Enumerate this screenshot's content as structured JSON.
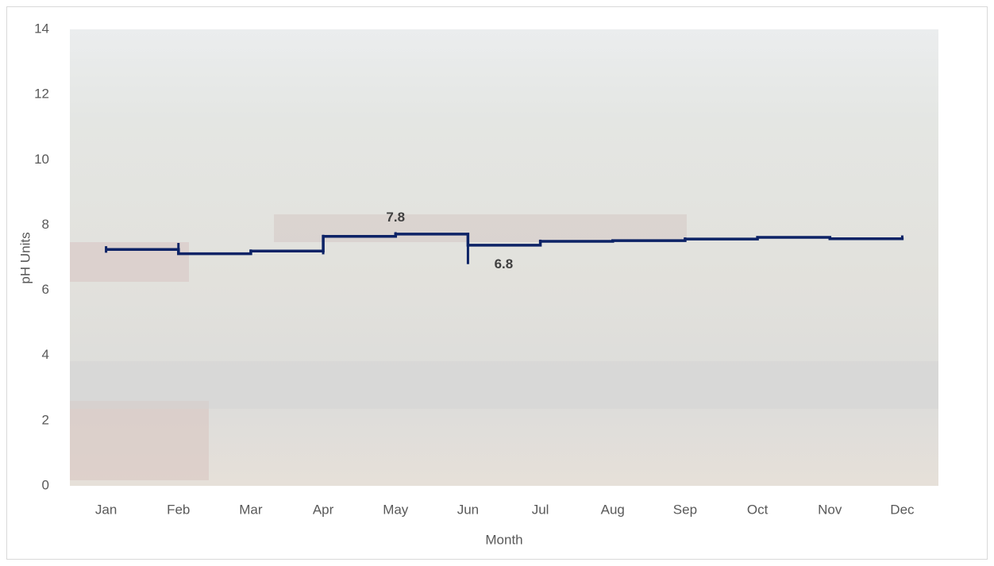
{
  "chart_data": {
    "type": "step",
    "x_label": "Month",
    "y_label": "pH Units",
    "categories": [
      "Jan",
      "Feb",
      "Mar",
      "Apr",
      "May",
      "Jun",
      "Jul",
      "Aug",
      "Sep",
      "Oct",
      "Nov",
      "Dec"
    ],
    "values": [
      7.25,
      7.12,
      7.2,
      7.65,
      7.72,
      7.38,
      7.5,
      7.52,
      7.57,
      7.62,
      7.58,
      7.62
    ],
    "low": [
      7.15,
      7.1,
      7.15,
      7.1,
      7.68,
      6.8,
      7.45,
      7.48,
      7.52,
      7.58,
      7.55,
      7.55
    ],
    "high": [
      7.35,
      7.45,
      7.25,
      7.7,
      7.78,
      7.76,
      7.55,
      7.56,
      7.62,
      7.66,
      7.62,
      7.68
    ],
    "high_value_labels": [
      null,
      null,
      null,
      null,
      "7.8",
      null,
      null,
      null,
      null,
      null,
      null,
      null
    ],
    "low_value_labels": [
      null,
      null,
      null,
      null,
      null,
      "6.8",
      null,
      null,
      null,
      null,
      null,
      null
    ],
    "color": "#0d2366",
    "ylim": [
      0,
      14
    ],
    "yticks": [
      0,
      2,
      4,
      6,
      8,
      10,
      12,
      14
    ],
    "grid": false
  }
}
